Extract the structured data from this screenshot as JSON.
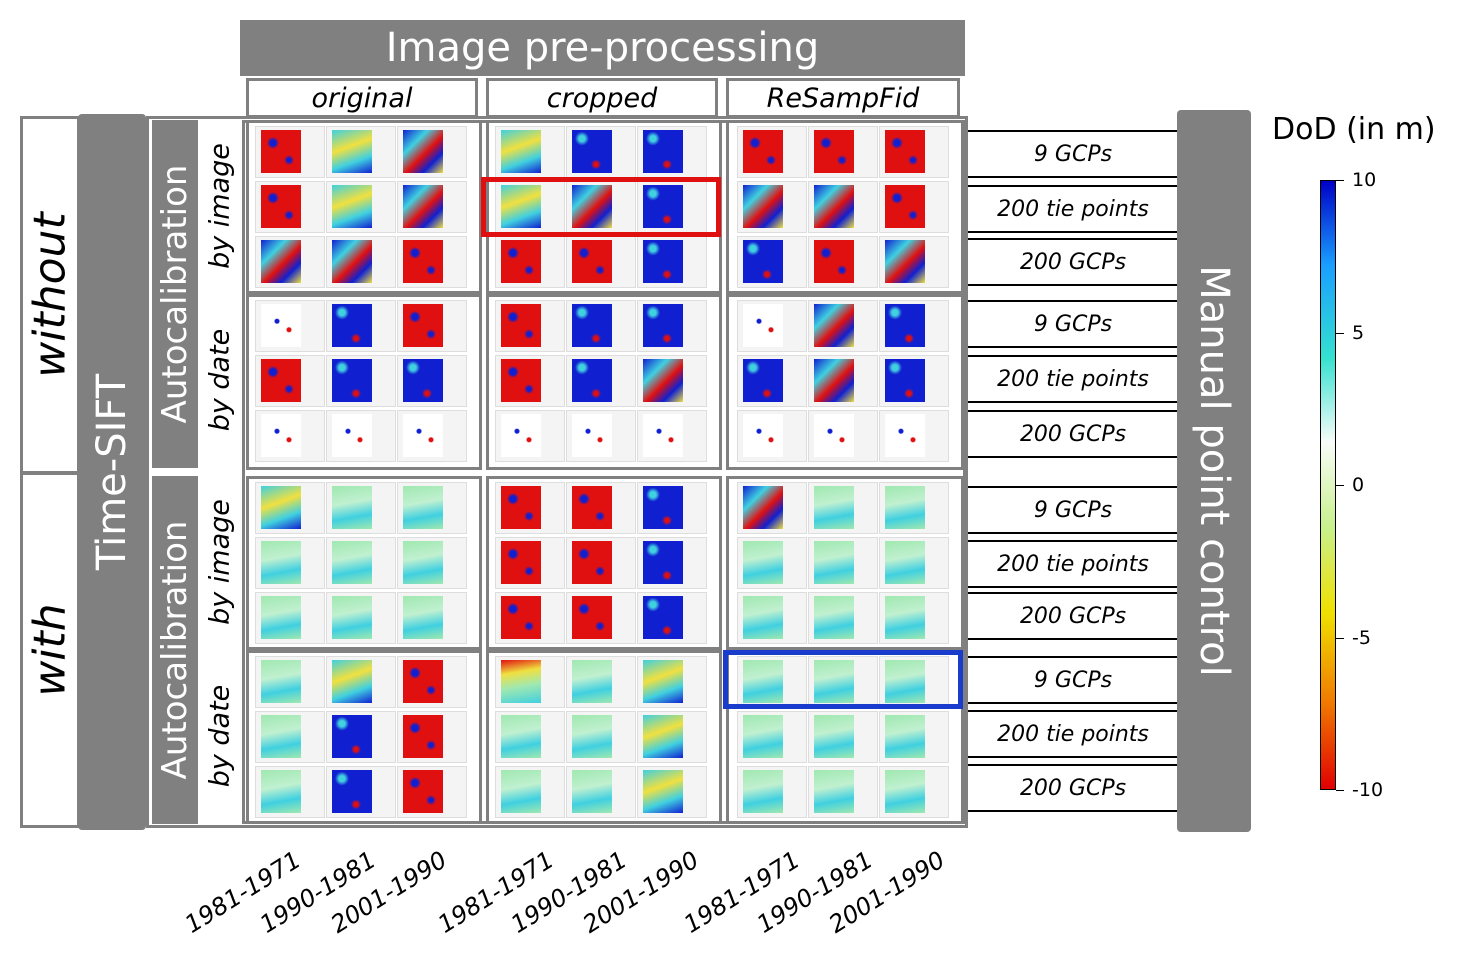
{
  "header": {
    "title": "Image pre-processing"
  },
  "columns": [
    {
      "label": "original"
    },
    {
      "label": "cropped"
    },
    {
      "label": "ReSampFid"
    }
  ],
  "time_sift": {
    "label": "Time-SIFT",
    "without": "without",
    "with": "with"
  },
  "autocalibration": {
    "label": "Autocalibration",
    "by_image": "by image",
    "by_date": "by date"
  },
  "manual_control": {
    "label": "Manual point control",
    "rows": [
      "9 GCPs",
      "200 tie points",
      "200 GCPs",
      "9 GCPs",
      "200 tie points",
      "200 GCPs",
      "9 GCPs",
      "200 tie points",
      "200 GCPs",
      "9 GCPs",
      "200 tie points",
      "200 GCPs"
    ]
  },
  "x_labels": [
    "1981-1971",
    "1990-1981",
    "2001-1990",
    "1981-1971",
    "1990-1981",
    "2001-1990",
    "1981-1971",
    "1990-1981",
    "2001-1990"
  ],
  "colorbar": {
    "title": "DoD (in m)",
    "ticks": [
      "10",
      "5",
      "0",
      "-5",
      "-10"
    ],
    "colors": [
      "#0000c8",
      "#1aa0ff",
      "#35e0d0",
      "#f8fcf8",
      "#c8f08c",
      "#f0e000",
      "#f07800",
      "#e00000"
    ]
  },
  "highlights": {
    "red": "#e01010",
    "blue": "#1a3ccc"
  },
  "thumb_palette": {
    "red": "#e01010",
    "blue": "#1020d0",
    "cyan": "#40d0e0",
    "green": "#a0e8b0",
    "yellow": "#f0e040",
    "mixed": "#8aa8e0",
    "white": "#ffffff"
  }
}
